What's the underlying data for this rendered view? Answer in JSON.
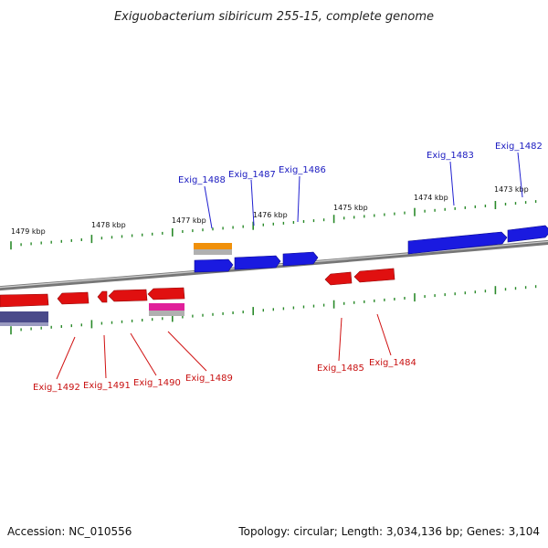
{
  "title": "Exiguobacterium sibiricum 255-15, complete genome",
  "footer": {
    "accession": "Accession: NC_010556",
    "topology": "Topology: circular; Length: 3,034,136 bp; Genes: 3,104"
  },
  "kbp_labels": [
    "1479 kbp",
    "1478 kbp",
    "1477 kbp",
    "1476 kbp",
    "1475 kbp",
    "1474 kbp",
    "1473 kbp"
  ],
  "genes_top": [
    "Exig_1488",
    "Exig_1487",
    "Exig_1486",
    "Exig_1483",
    "Exig_1482"
  ],
  "genes_bottom": [
    "Exig_1492",
    "Exig_1491",
    "Exig_1490",
    "Exig_1489",
    "Exig_1485",
    "Exig_1484"
  ],
  "colors": {
    "forward": "#1a1ae0",
    "reverse": "#e01010",
    "orange": "#f0900a",
    "magenta": "#e0209a",
    "purple": "#4a4a8a",
    "tick": "#2a8a2a",
    "backbone": "#888888"
  }
}
